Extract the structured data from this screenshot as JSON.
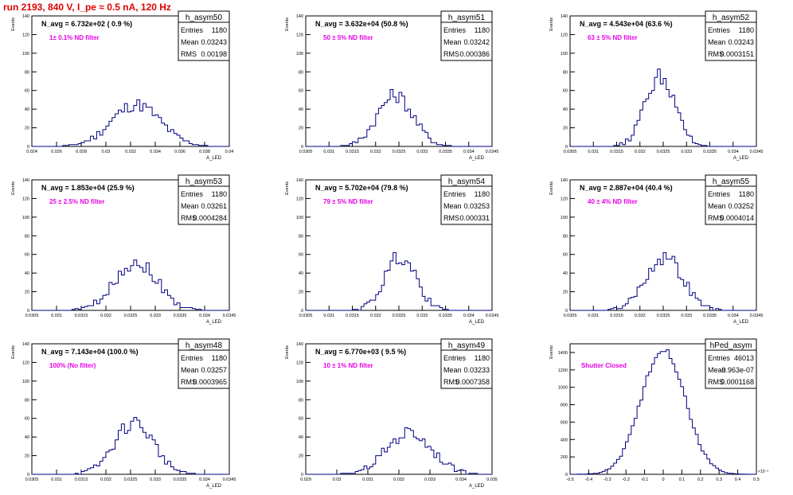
{
  "run_title": "run 2193,   840 V, I_pe ≈ 0.5 nA, 120 Hz",
  "colors": {
    "magenta": "#e600e6",
    "red": "#e00000",
    "line": "#000080"
  },
  "chart_data": [
    {
      "type": "histogram",
      "name": "h_asym50",
      "navg": "N_avg = 6.732e+02 ( 0.9 %)",
      "filter": "1± 0.1% ND filter",
      "entries": "1180",
      "mean": "0.03243",
      "rms": "0.00198",
      "xlim": [
        0.024,
        0.04
      ],
      "ylim": [
        0,
        140
      ],
      "yticks": [
        0,
        20,
        40,
        60,
        80,
        100,
        120,
        140
      ],
      "xticks": [
        "0.024",
        "0.026",
        "0.028",
        "0.03",
        "0.032",
        "0.034",
        "0.036",
        "0.038",
        "0.04"
      ],
      "xlabel": "A_LED",
      "ylabel": "Events",
      "mu": 0.03243,
      "sigma": 0.00198,
      "peak": 45
    },
    {
      "type": "histogram",
      "name": "h_asym51",
      "navg": "N_avg = 3.632e+04 (50.8 %)",
      "filter": "50 ± 5% ND filter",
      "entries": "1180",
      "mean": "0.03242",
      "rms": "0.000386",
      "xlim": [
        0.0305,
        0.0345
      ],
      "ylim": [
        0,
        140
      ],
      "yticks": [
        0,
        20,
        40,
        60,
        80,
        100,
        120,
        140
      ],
      "xticks": [
        "0.0305",
        "0.031",
        "0.0315",
        "0.032",
        "0.0325",
        "0.033",
        "0.0335",
        "0.034",
        "0.0345"
      ],
      "xlabel": "A_LED",
      "ylabel": "Events",
      "mu": 0.03242,
      "sigma": 0.000386,
      "peak": 55
    },
    {
      "type": "histogram",
      "name": "h_asym52",
      "navg": "N_avg = 4.543e+04 (63.6 %)",
      "filter": "63 ± 5% ND filter",
      "entries": "1180",
      "mean": "0.03243",
      "rms": "0.0003151",
      "xlim": [
        0.0305,
        0.0345
      ],
      "ylim": [
        0,
        140
      ],
      "yticks": [
        0,
        20,
        40,
        60,
        80,
        100,
        120,
        140
      ],
      "xticks": [
        "0.0305",
        "0.031",
        "0.0315",
        "0.032",
        "0.0325",
        "0.033",
        "0.0335",
        "0.034",
        "0.0345"
      ],
      "xlabel": "A_LED",
      "ylabel": "Events",
      "mu": 0.03243,
      "sigma": 0.0003151,
      "peak": 76
    },
    {
      "type": "histogram",
      "name": "h_asym53",
      "navg": "N_avg = 1.853e+04 (25.9 %)",
      "filter": "25 ± 2.5% ND filter",
      "entries": "1180",
      "mean": "0.03261",
      "rms": "0.0004284",
      "xlim": [
        0.0305,
        0.0345
      ],
      "ylim": [
        0,
        140
      ],
      "yticks": [
        0,
        20,
        40,
        60,
        80,
        100,
        120,
        140
      ],
      "xticks": [
        "0.0305",
        "0.031",
        "0.0315",
        "0.032",
        "0.0325",
        "0.033",
        "0.0335",
        "0.034",
        "0.0345"
      ],
      "xlabel": "A_LED",
      "ylabel": "Events",
      "mu": 0.03261,
      "sigma": 0.0004284,
      "peak": 52
    },
    {
      "type": "histogram",
      "name": "h_asym54",
      "navg": "N_avg = 5.702e+04 (79.8 %)",
      "filter": "79 ± 5% ND filter",
      "entries": "1180",
      "mean": "0.03253",
      "rms": "0.000331",
      "xlim": [
        0.0305,
        0.0345
      ],
      "ylim": [
        0,
        140
      ],
      "yticks": [
        0,
        20,
        40,
        60,
        80,
        100,
        120,
        140
      ],
      "xticks": [
        "0.0305",
        "0.031",
        "0.0315",
        "0.032",
        "0.0325",
        "0.033",
        "0.0335",
        "0.034",
        "0.0345"
      ],
      "xlabel": "A_LED",
      "ylabel": "Events",
      "mu": 0.03253,
      "sigma": 0.000331,
      "peak": 58
    },
    {
      "type": "histogram",
      "name": "h_asym55",
      "navg": "N_avg = 2.887e+04 (40.4 %)",
      "filter": "40 ± 4% ND filter",
      "entries": "1180",
      "mean": "0.03252",
      "rms": "0.0004014",
      "xlim": [
        0.0305,
        0.0345
      ],
      "ylim": [
        0,
        140
      ],
      "yticks": [
        0,
        20,
        40,
        60,
        80,
        100,
        120,
        140
      ],
      "xticks": [
        "0.0305",
        "0.031",
        "0.0315",
        "0.032",
        "0.0325",
        "0.033",
        "0.0335",
        "0.034",
        "0.0345"
      ],
      "xlabel": "A_LED",
      "ylabel": "Events",
      "mu": 0.03252,
      "sigma": 0.0004014,
      "peak": 57
    },
    {
      "type": "histogram",
      "name": "h_asym48",
      "navg": "N_avg = 7.143e+04 (100.0 %)",
      "filter": "100% (No filter)",
      "entries": "1180",
      "mean": "0.03257",
      "rms": "0.0003965",
      "xlim": [
        0.0305,
        0.0345
      ],
      "ylim": [
        0,
        140
      ],
      "yticks": [
        0,
        20,
        40,
        60,
        80,
        100,
        120,
        140
      ],
      "xticks": [
        "0.0305",
        "0.031",
        "0.0315",
        "0.032",
        "0.0325",
        "0.033",
        "0.0335",
        "0.034",
        "0.0345"
      ],
      "xlabel": "A_LED",
      "ylabel": "Events",
      "mu": 0.03257,
      "sigma": 0.0003965,
      "peak": 56
    },
    {
      "type": "histogram",
      "name": "h_asym49",
      "navg": "N_avg = 6.770e+03 ( 9.5 %)",
      "filter": "10 ± 1% ND filter",
      "entries": "1180",
      "mean": "0.03233",
      "rms": "0.0007358",
      "xlim": [
        0.029,
        0.035
      ],
      "ylim": [
        0,
        140
      ],
      "yticks": [
        0,
        20,
        40,
        60,
        80,
        100,
        120,
        140
      ],
      "xticks": [
        "0.029",
        "0.03",
        "0.031",
        "0.032",
        "0.033",
        "0.034",
        "0.035"
      ],
      "xlabel": "A_LED",
      "ylabel": "Events",
      "mu": 0.03233,
      "sigma": 0.0007358,
      "peak": 45
    },
    {
      "type": "histogram",
      "name": "hPed_asym",
      "navg": "",
      "filter": "Shutter Closed",
      "entries": "46013",
      "mean": "-9.963e-07",
      "rms": "0.0001168",
      "xlim": [
        -0.0005,
        0.0005
      ],
      "ylim": [
        0,
        1500
      ],
      "yticks": [
        0,
        200,
        400,
        600,
        800,
        1000,
        1200,
        1400
      ],
      "xticks": [
        "-0.5",
        "-0.4",
        "-0.3",
        "-0.2",
        "-0.1",
        "0",
        "0.1",
        "0.2",
        "0.3",
        "0.4",
        "0.5"
      ],
      "xscale": "×10⁻³",
      "xlabel": "",
      "ylabel": "Events",
      "mu": 0.0,
      "sigma": 0.0001168,
      "peak": 1450
    }
  ]
}
